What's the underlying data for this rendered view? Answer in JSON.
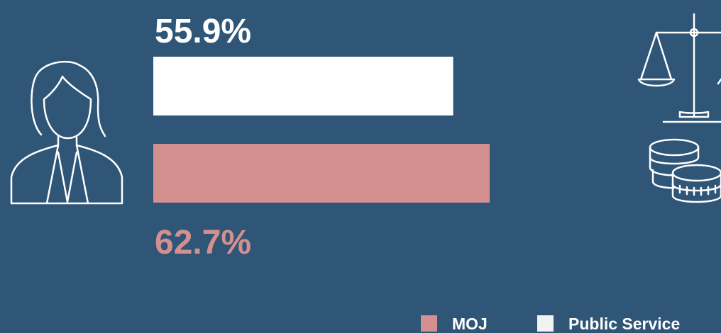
{
  "chart_data": {
    "type": "bar",
    "orientation": "horizontal",
    "categories": [
      null
    ],
    "series": [
      {
        "name": "MOJ",
        "color": "#d4908e",
        "values": [
          62.7
        ],
        "value_labels": [
          "62.7%"
        ]
      },
      {
        "name": "Public Service",
        "color": "#ffffff",
        "values": [
          55.9
        ],
        "value_labels": [
          "55.9%"
        ]
      }
    ],
    "legend": "bottom-right"
  }
}
